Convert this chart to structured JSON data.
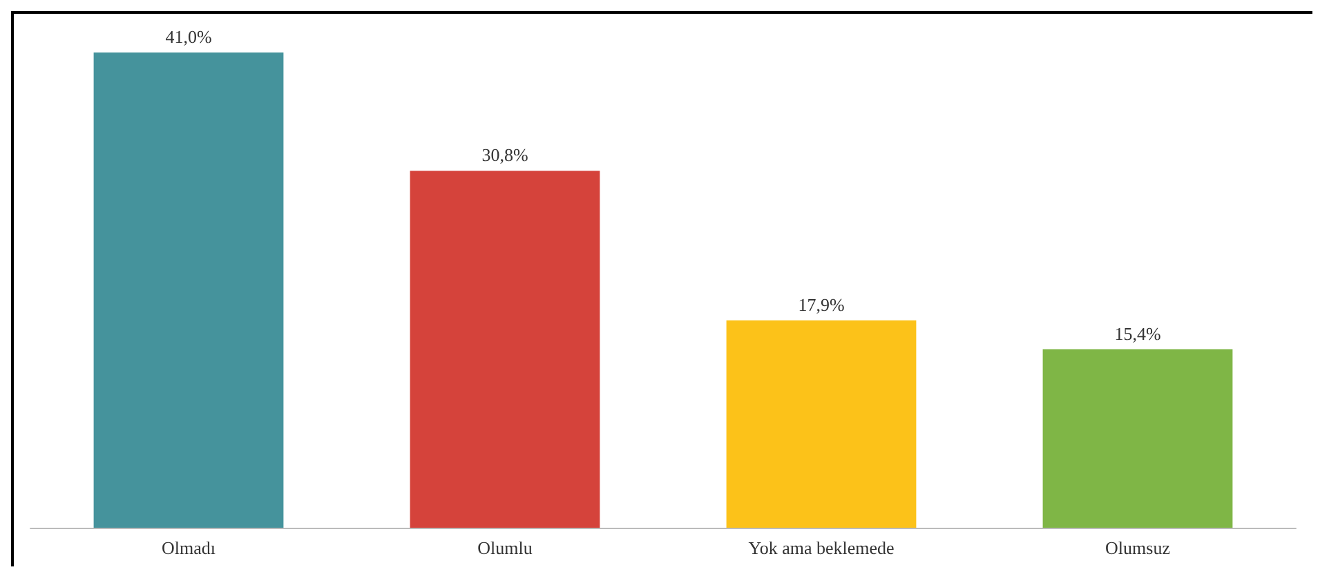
{
  "chart_data": {
    "type": "bar",
    "categories": [
      "Olmadı",
      "Olumlu",
      "Yok ama beklemede",
      "Olumsuz"
    ],
    "values": [
      41.0,
      30.8,
      17.9,
      15.4
    ],
    "colors": [
      "#45939c",
      "#d5433b",
      "#fcc219",
      "#7fb646"
    ],
    "value_labels": [
      "41,0%",
      "30,8%",
      "17,9%",
      "15,4%"
    ]
  }
}
